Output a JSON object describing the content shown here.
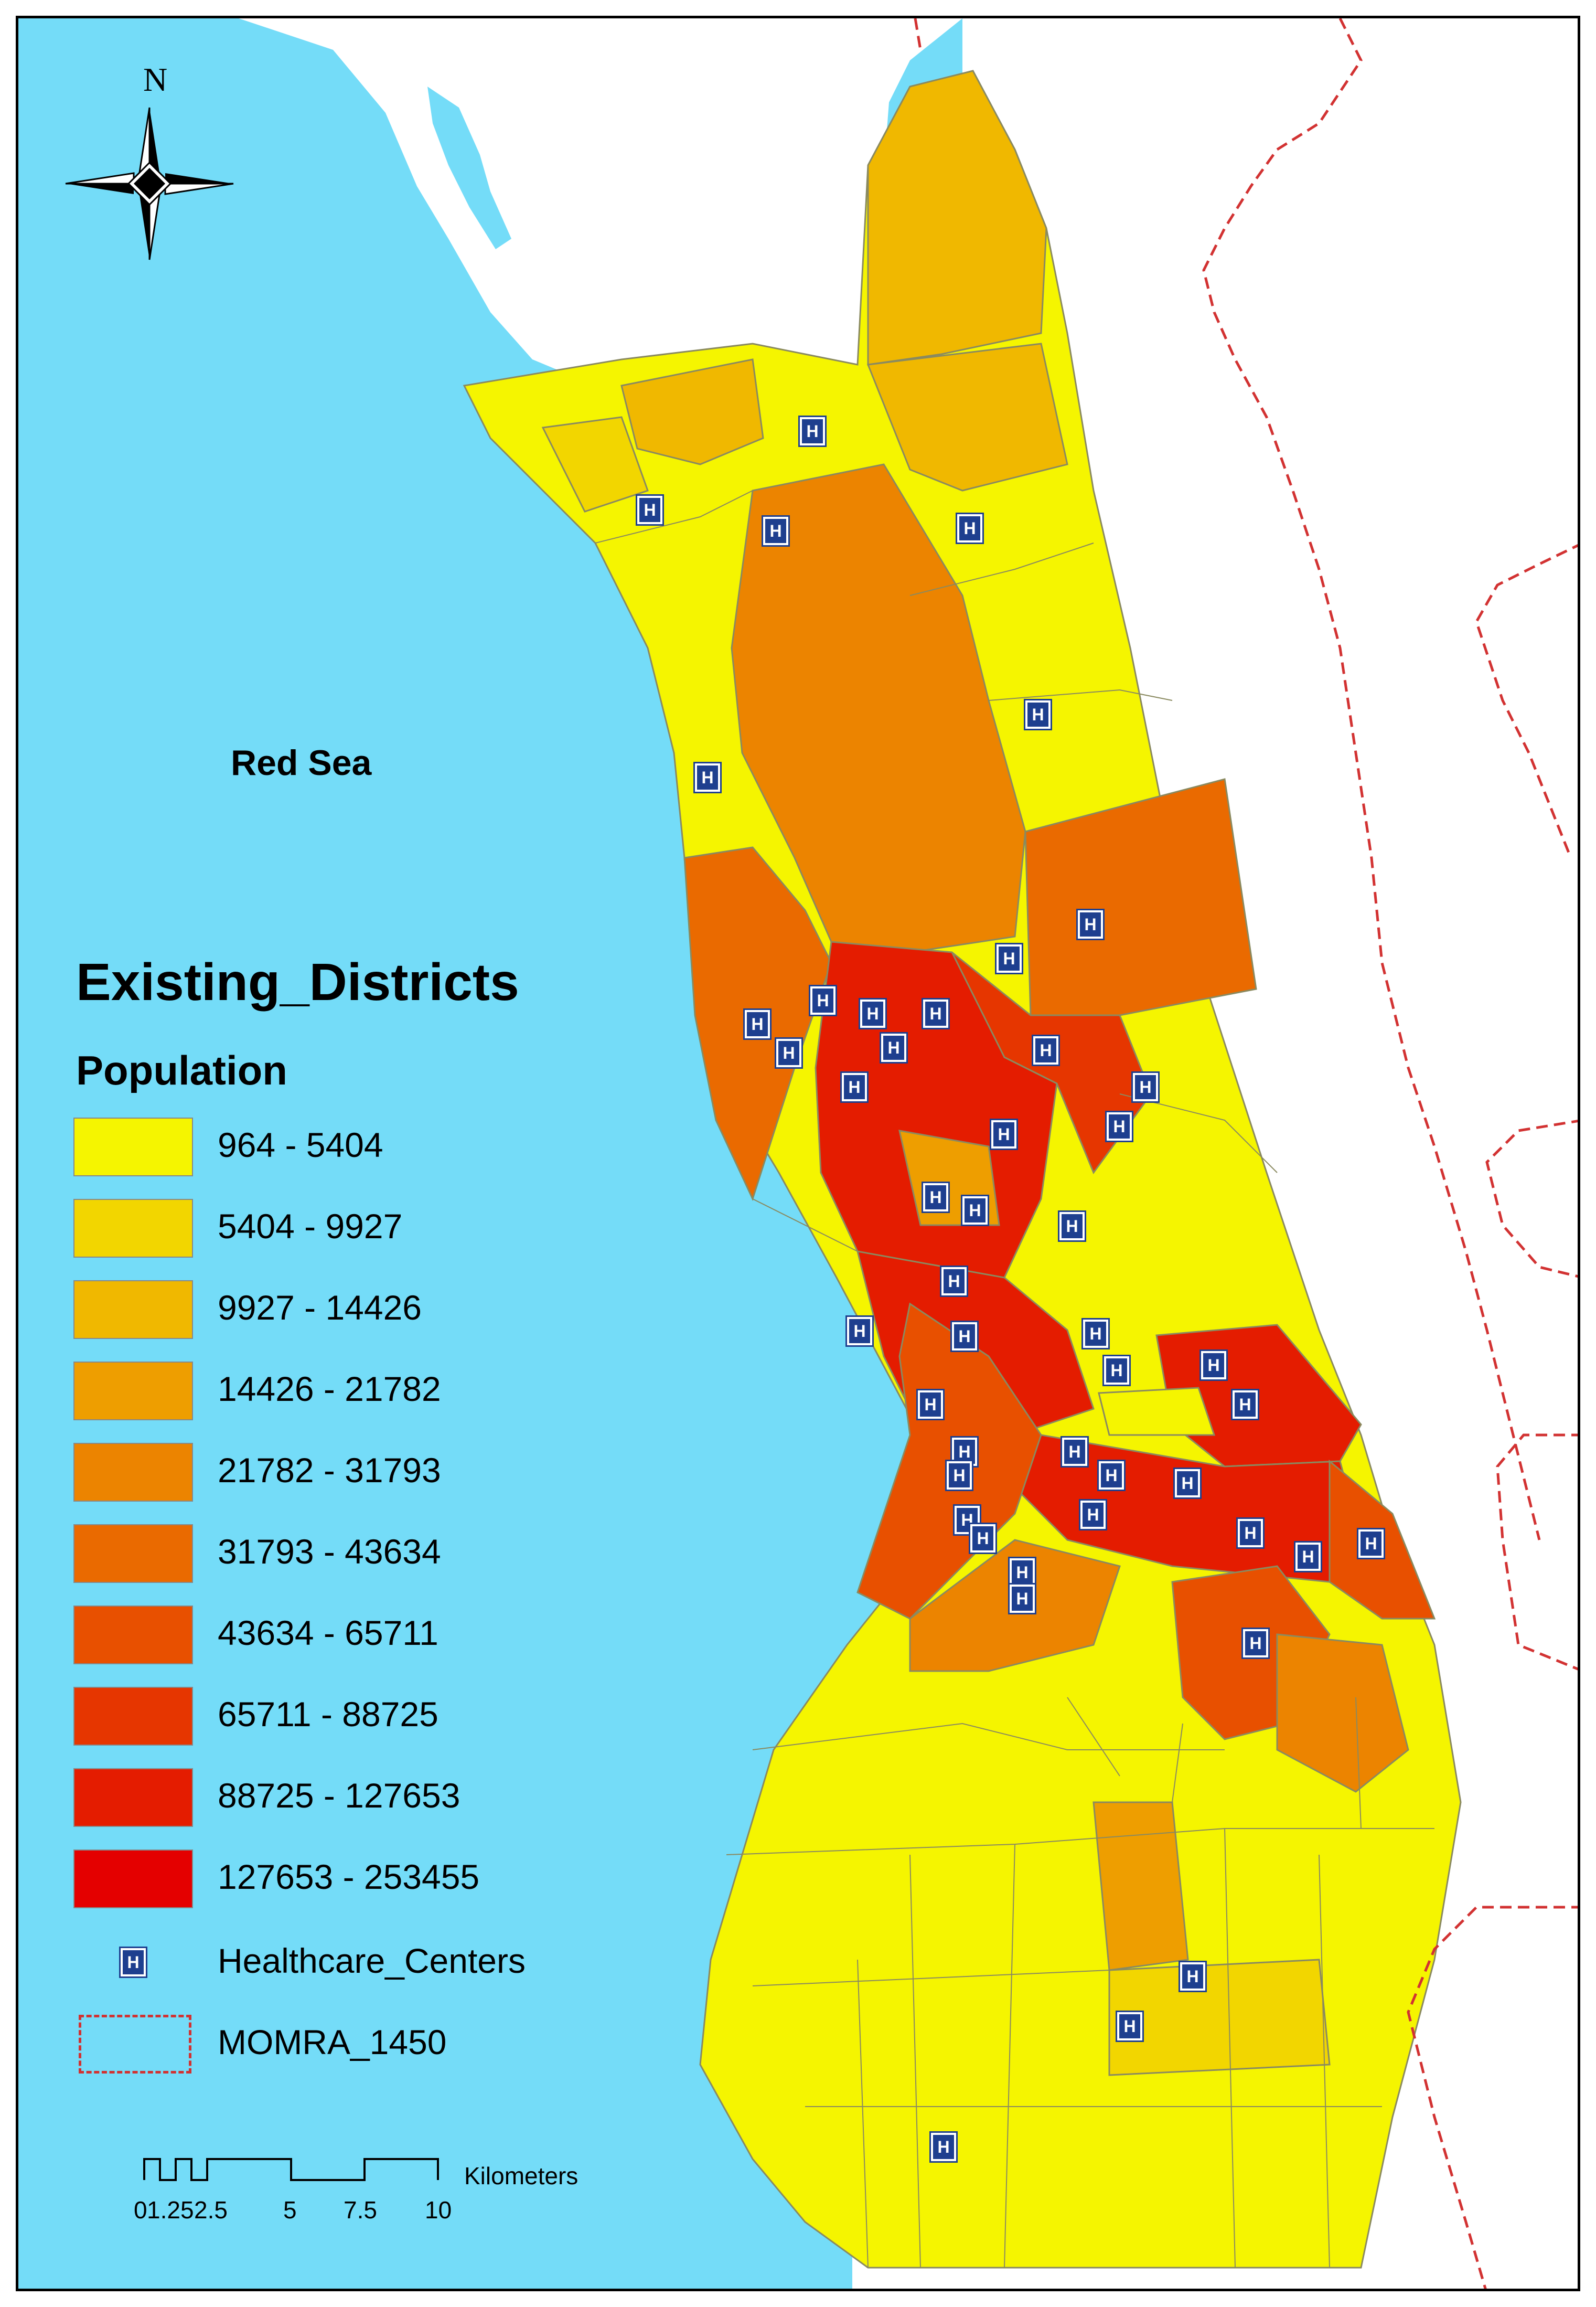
{
  "map": {
    "title": "Existing_Districts",
    "legend_subtitle": "Population",
    "sea_label": "Red Sea",
    "north_label": "N",
    "legend_classes": [
      {
        "label": "964 - 5404",
        "color": "#f5f500"
      },
      {
        "label": "5404 - 9927",
        "color": "#f2d600"
      },
      {
        "label": "9927 - 14426",
        "color": "#f0b800"
      },
      {
        "label": "14426 - 21782",
        "color": "#ee9e00"
      },
      {
        "label": "21782 - 31793",
        "color": "#ec8400"
      },
      {
        "label": "31793 - 43634",
        "color": "#ea6a00"
      },
      {
        "label": "43634 - 65711",
        "color": "#e85000"
      },
      {
        "label": "65711 - 88725",
        "color": "#e63600"
      },
      {
        "label": "88725 - 127653",
        "color": "#e41c00"
      },
      {
        "label": "127653 - 253455",
        "color": "#e40000"
      }
    ],
    "point_layer": {
      "label": "Healthcare_Centers",
      "symbol_text": "H",
      "color": "#1e3f8f"
    },
    "boundary_layer": {
      "label": "MOMRA_1450",
      "color": "#d23232"
    },
    "water_color": "#74dcf8",
    "scale_bar": {
      "ticks": [
        "0",
        "1.25",
        "2.5",
        "5",
        "7.5",
        "10"
      ],
      "unit": "Kilometers"
    }
  }
}
